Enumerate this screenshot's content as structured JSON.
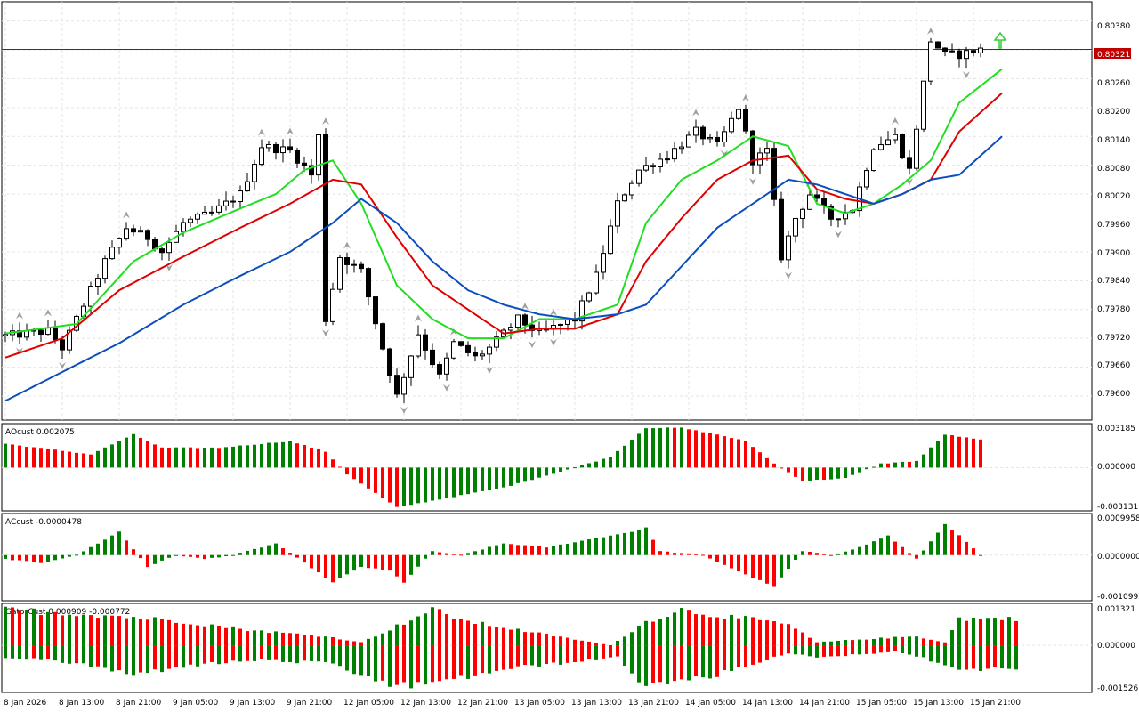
{
  "colors": {
    "background": "#ffffff",
    "grid": "#e3e3e3",
    "border": "#000000",
    "bull": "#008000",
    "bear": "#ff0000",
    "alligator_jaw": "#0b4fbe",
    "alligator_teeth": "#e00000",
    "alligator_lips": "#22dd22",
    "price_line": "#c00000",
    "fractal": "#a0a0a0",
    "signal_arrow": "#33cc33"
  },
  "main_panel": {
    "current_price": "0.80321",
    "price_axis_labels": [
      "0.80380",
      "0.80321",
      "0.80260",
      "0.80200",
      "0.80140",
      "0.80080",
      "0.80020",
      "0.79960",
      "0.79900",
      "0.79840",
      "0.79780",
      "0.79720",
      "0.79660",
      "0.79600"
    ],
    "signal_icon": "up-arrow-icon"
  },
  "ao_panel": {
    "title": "AOcust 0.002075",
    "axis_labels": [
      "0.003185",
      "0.000000",
      "-0.003131"
    ]
  },
  "ac_panel": {
    "title": "ACcust -0.0000478",
    "axis_labels": [
      "0.0009958",
      "0.0000000",
      "-0.0010993"
    ]
  },
  "gator_panel": {
    "title": "GatorCust 0.000909 -0.000772",
    "axis_labels": [
      "0.001321",
      "0.000000",
      "-0.001526"
    ]
  },
  "time_axis": [
    "8 Jan 2026",
    "8 Jan 13:00",
    "8 Jan 21:00",
    "9 Jan 05:00",
    "9 Jan 13:00",
    "9 Jan 21:00",
    "12 Jan 05:00",
    "12 Jan 13:00",
    "12 Jan 21:00",
    "13 Jan 05:00",
    "13 Jan 13:00",
    "13 Jan 21:00",
    "14 Jan 05:00",
    "14 Jan 13:00",
    "14 Jan 21:00",
    "15 Jan 05:00",
    "15 Jan 13:00",
    "15 Jan 21:00"
  ],
  "chart_data": [
    {
      "type": "candlestick",
      "panel": "price",
      "ylim": [
        0.7955,
        0.8042
      ],
      "bar_count": 138,
      "close_path": [
        [
          0,
          0.79725
        ],
        [
          6,
          0.79735
        ],
        [
          8,
          0.797
        ],
        [
          10,
          0.7976
        ],
        [
          14,
          0.7988
        ],
        [
          17,
          0.7995
        ],
        [
          20,
          0.7993
        ],
        [
          22,
          0.799
        ],
        [
          25,
          0.7996
        ],
        [
          29,
          0.7998
        ],
        [
          33,
          0.8002
        ],
        [
          36,
          0.8012
        ],
        [
          40,
          0.8011
        ],
        [
          43,
          0.8006
        ],
        [
          44,
          0.8014
        ],
        [
          45,
          0.7976
        ],
        [
          47,
          0.7989
        ],
        [
          50,
          0.7986
        ],
        [
          53,
          0.797
        ],
        [
          55,
          0.796
        ],
        [
          58,
          0.7973
        ],
        [
          61,
          0.7964
        ],
        [
          63,
          0.7971
        ],
        [
          66,
          0.7968
        ],
        [
          68,
          0.797
        ],
        [
          72,
          0.7976
        ],
        [
          75,
          0.7973
        ],
        [
          80,
          0.7976
        ],
        [
          83,
          0.7985
        ],
        [
          86,
          0.8
        ],
        [
          89,
          0.8007
        ],
        [
          93,
          0.801
        ],
        [
          97,
          0.8015
        ],
        [
          100,
          0.8012
        ],
        [
          103,
          0.802
        ],
        [
          105,
          0.8009
        ],
        [
          107,
          0.8011
        ],
        [
          109,
          0.7989
        ],
        [
          111,
          0.7997
        ],
        [
          113,
          0.8002
        ],
        [
          116,
          0.7997
        ],
        [
          119,
          0.7999
        ],
        [
          122,
          0.8012
        ],
        [
          125,
          0.8014
        ],
        [
          127,
          0.8007
        ],
        [
          130,
          0.8034
        ],
        [
          132,
          0.8031
        ],
        [
          134,
          0.8031
        ],
        [
          137,
          0.80321
        ]
      ]
    },
    {
      "type": "line",
      "panel": "price",
      "series": [
        {
          "name": "alligator-lips",
          "points": [
            [
              0,
              0.7973
            ],
            [
              10,
              0.7975
            ],
            [
              18,
              0.7988
            ],
            [
              25,
              0.7994
            ],
            [
              33,
              0.7999
            ],
            [
              38,
              0.8002
            ],
            [
              42,
              0.8007
            ],
            [
              46,
              0.8009
            ],
            [
              50,
              0.8
            ],
            [
              55,
              0.7983
            ],
            [
              60,
              0.7976
            ],
            [
              65,
              0.7972
            ],
            [
              70,
              0.7972
            ],
            [
              75,
              0.7976
            ],
            [
              80,
              0.7976
            ],
            [
              86,
              0.7979
            ],
            [
              90,
              0.7996
            ],
            [
              95,
              0.8005
            ],
            [
              100,
              0.8009
            ],
            [
              105,
              0.8014
            ],
            [
              110,
              0.8012
            ],
            [
              114,
              0.8
            ],
            [
              118,
              0.7998
            ],
            [
              122,
              0.8
            ],
            [
              126,
              0.8004
            ],
            [
              130,
              0.8009
            ],
            [
              134,
              0.8021
            ],
            [
              140,
              0.8028
            ]
          ]
        },
        {
          "name": "alligator-teeth",
          "points": [
            [
              0,
              0.7968
            ],
            [
              8,
              0.7972
            ],
            [
              16,
              0.7982
            ],
            [
              25,
              0.7989
            ],
            [
              33,
              0.7995
            ],
            [
              40,
              0.8
            ],
            [
              46,
              0.8005
            ],
            [
              50,
              0.8004
            ],
            [
              55,
              0.7993
            ],
            [
              60,
              0.7983
            ],
            [
              65,
              0.7978
            ],
            [
              70,
              0.7973
            ],
            [
              75,
              0.7974
            ],
            [
              80,
              0.7974
            ],
            [
              86,
              0.7977
            ],
            [
              90,
              0.7988
            ],
            [
              95,
              0.7997
            ],
            [
              100,
              0.8005
            ],
            [
              105,
              0.8009
            ],
            [
              110,
              0.801
            ],
            [
              114,
              0.8003
            ],
            [
              118,
              0.8001
            ],
            [
              122,
              0.8
            ],
            [
              126,
              0.8002
            ],
            [
              130,
              0.8005
            ],
            [
              134,
              0.8015
            ],
            [
              140,
              0.8023
            ]
          ]
        },
        {
          "name": "alligator-jaw",
          "points": [
            [
              0,
              0.7959
            ],
            [
              8,
              0.7965
            ],
            [
              16,
              0.7971
            ],
            [
              25,
              0.7979
            ],
            [
              33,
              0.7985
            ],
            [
              40,
              0.799
            ],
            [
              46,
              0.7996
            ],
            [
              50,
              0.8001
            ],
            [
              55,
              0.7996
            ],
            [
              60,
              0.7988
            ],
            [
              65,
              0.7982
            ],
            [
              70,
              0.7979
            ],
            [
              75,
              0.7977
            ],
            [
              80,
              0.7976
            ],
            [
              86,
              0.7977
            ],
            [
              90,
              0.7979
            ],
            [
              95,
              0.7987
            ],
            [
              100,
              0.7995
            ],
            [
              105,
              0.8
            ],
            [
              110,
              0.8005
            ],
            [
              114,
              0.8004
            ],
            [
              118,
              0.8002
            ],
            [
              122,
              0.8
            ],
            [
              126,
              0.8002
            ],
            [
              130,
              0.8005
            ],
            [
              134,
              0.8006
            ],
            [
              140,
              0.8014
            ]
          ]
        }
      ]
    },
    {
      "type": "bar",
      "panel": "AOcust",
      "ylim": [
        -0.003131,
        0.003185
      ],
      "values_path": [
        [
          0,
          0.0018
        ],
        [
          12,
          0.001
        ],
        [
          18,
          0.0025
        ],
        [
          22,
          0.0015
        ],
        [
          30,
          0.0015
        ],
        [
          40,
          0.002
        ],
        [
          45,
          0.0012
        ],
        [
          48,
          -0.0005
        ],
        [
          55,
          -0.003
        ],
        [
          60,
          -0.0025
        ],
        [
          70,
          -0.0015
        ],
        [
          78,
          -0.0003
        ],
        [
          85,
          0.0008
        ],
        [
          90,
          0.003
        ],
        [
          95,
          0.003
        ],
        [
          100,
          0.0025
        ],
        [
          104,
          0.002
        ],
        [
          108,
          0.0003
        ],
        [
          112,
          -0.001
        ],
        [
          118,
          -0.0008
        ],
        [
          123,
          0.0003
        ],
        [
          128,
          0.0005
        ],
        [
          132,
          0.0025
        ],
        [
          137,
          0.0021
        ]
      ]
    },
    {
      "type": "bar",
      "panel": "ACcust",
      "ylim": [
        -0.0010993,
        0.0009958
      ],
      "values_path": [
        [
          0,
          -0.0001
        ],
        [
          5,
          -0.0002
        ],
        [
          10,
          0.0
        ],
        [
          14,
          0.0004
        ],
        [
          16,
          0.0006
        ],
        [
          20,
          -0.0003
        ],
        [
          24,
          0.0
        ],
        [
          28,
          -0.0001
        ],
        [
          32,
          0.0
        ],
        [
          38,
          0.0003
        ],
        [
          42,
          -0.0002
        ],
        [
          46,
          -0.0007
        ],
        [
          50,
          -0.0003
        ],
        [
          54,
          -0.0004
        ],
        [
          56,
          -0.0007
        ],
        [
          60,
          0.0001
        ],
        [
          64,
          0.0
        ],
        [
          70,
          0.0003
        ],
        [
          76,
          0.0002
        ],
        [
          82,
          0.0004
        ],
        [
          88,
          0.0006
        ],
        [
          90,
          0.0007
        ],
        [
          92,
          0.0001
        ],
        [
          98,
          0.0
        ],
        [
          104,
          -0.0005
        ],
        [
          108,
          -0.0008
        ],
        [
          112,
          0.0001
        ],
        [
          116,
          0.0
        ],
        [
          120,
          0.0002
        ],
        [
          124,
          0.0005
        ],
        [
          128,
          -0.0001
        ],
        [
          132,
          0.0008
        ],
        [
          134,
          0.0005
        ],
        [
          137,
          0.0
        ]
      ]
    },
    {
      "type": "bar",
      "panel": "GatorCust",
      "ylim": [
        -0.001526,
        0.001321
      ],
      "upper_path": [
        [
          0,
          0.0012
        ],
        [
          15,
          0.001
        ],
        [
          25,
          0.0008
        ],
        [
          35,
          0.0005
        ],
        [
          45,
          0.0003
        ],
        [
          50,
          0.0001
        ],
        [
          60,
          0.0012
        ],
        [
          65,
          0.0008
        ],
        [
          75,
          0.0004
        ],
        [
          80,
          0.0002
        ],
        [
          85,
          0.0
        ],
        [
          90,
          0.0008
        ],
        [
          95,
          0.0012
        ],
        [
          100,
          0.001
        ],
        [
          104,
          0.0009
        ],
        [
          110,
          0.0007
        ],
        [
          114,
          0.0001
        ],
        [
          120,
          0.0002
        ],
        [
          128,
          0.0003
        ],
        [
          132,
          0.0001
        ],
        [
          134,
          0.0009
        ],
        [
          140,
          0.0009
        ]
      ],
      "lower_path": [
        [
          0,
          -0.0004
        ],
        [
          10,
          -0.0006
        ],
        [
          18,
          -0.001
        ],
        [
          25,
          -0.0007
        ],
        [
          35,
          -0.0005
        ],
        [
          45,
          -0.0006
        ],
        [
          55,
          -0.0014
        ],
        [
          62,
          -0.0012
        ],
        [
          70,
          -0.0008
        ],
        [
          78,
          -0.0006
        ],
        [
          86,
          -0.0004
        ],
        [
          90,
          -0.0014
        ],
        [
          95,
          -0.0012
        ],
        [
          100,
          -0.001
        ],
        [
          105,
          -0.0006
        ],
        [
          110,
          -0.0003
        ],
        [
          115,
          -0.0004
        ],
        [
          125,
          -0.0002
        ],
        [
          130,
          -0.0005
        ],
        [
          134,
          -0.0008
        ],
        [
          140,
          -0.0008
        ]
      ]
    }
  ]
}
